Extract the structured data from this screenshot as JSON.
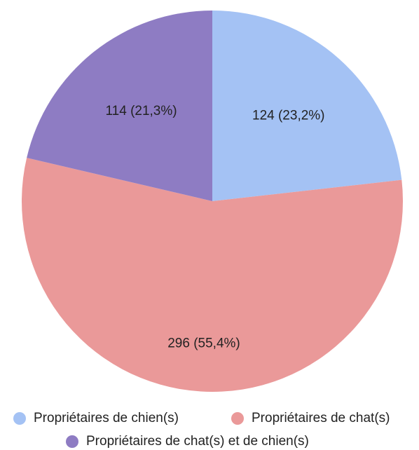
{
  "chart_data": {
    "type": "pie",
    "categories": [
      "Propriétaires de chien(s)",
      "Propriétaires de chat(s)",
      "Propriétaires de chat(s) et de chien(s)"
    ],
    "values": [
      124,
      296,
      114
    ],
    "value_labels": [
      "124 (23,2%)",
      "296 (55,4%)",
      "114 (21,3%)"
    ],
    "colors": [
      "#a4c2f4",
      "#ea9999",
      "#8e7cc3"
    ]
  }
}
